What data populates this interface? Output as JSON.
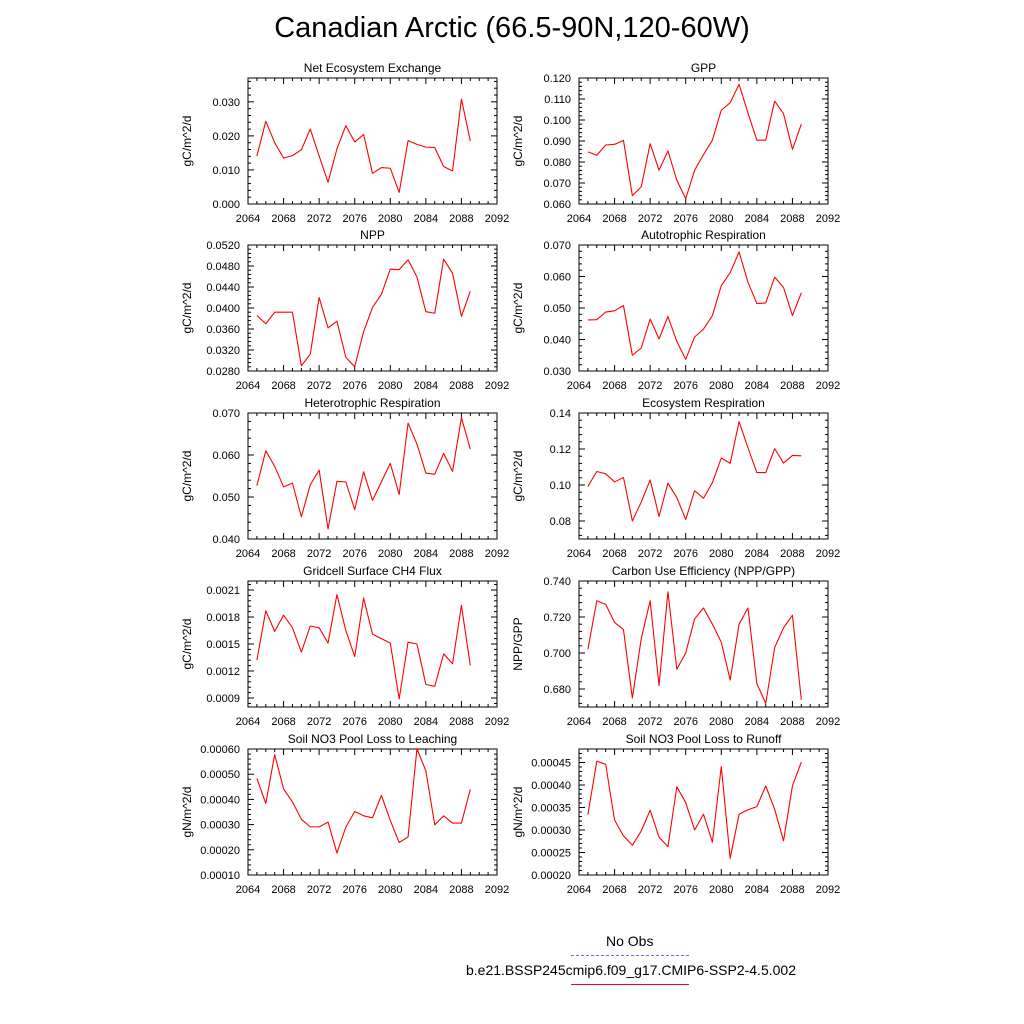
{
  "figure": {
    "title": "Canadian Arctic (66.5-90N,120-60W)"
  },
  "chart_data": [
    {
      "type": "line",
      "title": "Net Ecosystem Exchange",
      "ylabel": "gC/m^2/d",
      "xlim": [
        2064,
        2092
      ],
      "ylim": [
        0.0,
        0.037
      ],
      "xticks": [
        2064,
        2068,
        2072,
        2076,
        2080,
        2084,
        2088,
        2092
      ],
      "xtick_labels": [
        "2064",
        "2068",
        "2072",
        "2076",
        "2080",
        "2084",
        "2088",
        "2092"
      ],
      "yticks": [
        0.0,
        0.01,
        0.02,
        0.03
      ],
      "ytick_labels": [
        "0.000",
        "0.010",
        "0.020",
        "0.030"
      ],
      "x": [
        2065,
        2066,
        2067,
        2068,
        2069,
        2070,
        2071,
        2072,
        2073,
        2074,
        2075,
        2076,
        2077,
        2078,
        2079,
        2080,
        2081,
        2082,
        2083,
        2084,
        2085,
        2086,
        2087,
        2088,
        2089
      ],
      "series": [
        {
          "color": "#ff0000",
          "values": [
            0.0141,
            0.0243,
            0.018,
            0.0135,
            0.0142,
            0.0159,
            0.022,
            0.0141,
            0.0064,
            0.0162,
            0.023,
            0.0182,
            0.0204,
            0.009,
            0.0107,
            0.0105,
            0.0034,
            0.0186,
            0.0175,
            0.0167,
            0.0166,
            0.011,
            0.0097,
            0.0308,
            0.0185
          ]
        }
      ]
    },
    {
      "type": "line",
      "title": "GPP",
      "ylabel": "gC/m^2/d",
      "xlim": [
        2064,
        2092
      ],
      "ylim": [
        0.06,
        0.12
      ],
      "xticks": [
        2064,
        2068,
        2072,
        2076,
        2080,
        2084,
        2088,
        2092
      ],
      "xtick_labels": [
        "2064",
        "2068",
        "2072",
        "2076",
        "2080",
        "2084",
        "2088",
        "2092"
      ],
      "yticks": [
        0.06,
        0.07,
        0.08,
        0.09,
        0.1,
        0.11,
        0.12
      ],
      "ytick_labels": [
        "0.060",
        "0.070",
        "0.080",
        "0.090",
        "0.100",
        "0.110",
        "0.120"
      ],
      "x": [
        2065,
        2066,
        2067,
        2068,
        2069,
        2070,
        2071,
        2072,
        2073,
        2074,
        2075,
        2076,
        2077,
        2078,
        2079,
        2080,
        2081,
        2082,
        2083,
        2084,
        2085,
        2086,
        2087,
        2088,
        2089
      ],
      "series": [
        {
          "color": "#ff0000",
          "values": [
            0.0848,
            0.0832,
            0.0881,
            0.0884,
            0.0903,
            0.064,
            0.0682,
            0.0887,
            0.0761,
            0.0853,
            0.0713,
            0.0625,
            0.0761,
            0.0835,
            0.0904,
            0.1047,
            0.1082,
            0.117,
            0.1033,
            0.0904,
            0.0904,
            0.109,
            0.103,
            0.086,
            0.098
          ]
        }
      ]
    },
    {
      "type": "line",
      "title": "NPP",
      "ylabel": "gC/m^2/d",
      "xlim": [
        2064,
        2092
      ],
      "ylim": [
        0.028,
        0.052
      ],
      "xticks": [
        2064,
        2068,
        2072,
        2076,
        2080,
        2084,
        2088,
        2092
      ],
      "xtick_labels": [
        "2064",
        "2068",
        "2072",
        "2076",
        "2080",
        "2084",
        "2088",
        "2092"
      ],
      "yticks": [
        0.028,
        0.032,
        0.036,
        0.04,
        0.044,
        0.048,
        0.052
      ],
      "ytick_labels": [
        "0.0280",
        "0.0320",
        "0.0360",
        "0.0400",
        "0.0440",
        "0.0480",
        "0.0520"
      ],
      "x": [
        2065,
        2066,
        2067,
        2068,
        2069,
        2070,
        2071,
        2072,
        2073,
        2074,
        2075,
        2076,
        2077,
        2078,
        2079,
        2080,
        2081,
        2082,
        2083,
        2084,
        2085,
        2086,
        2087,
        2088,
        2089
      ],
      "series": [
        {
          "color": "#ff0000",
          "values": [
            0.0386,
            0.037,
            0.0392,
            0.0392,
            0.0392,
            0.029,
            0.0312,
            0.042,
            0.0362,
            0.0375,
            0.0306,
            0.0288,
            0.0355,
            0.0401,
            0.0426,
            0.0474,
            0.0473,
            0.0492,
            0.0459,
            0.0393,
            0.039,
            0.0493,
            0.0466,
            0.0384,
            0.0432
          ]
        }
      ]
    },
    {
      "type": "line",
      "title": "Autotrophic Respiration",
      "ylabel": "gC/m^2/d",
      "xlim": [
        2064,
        2092
      ],
      "ylim": [
        0.03,
        0.07
      ],
      "xticks": [
        2064,
        2068,
        2072,
        2076,
        2080,
        2084,
        2088,
        2092
      ],
      "xtick_labels": [
        "2064",
        "2068",
        "2072",
        "2076",
        "2080",
        "2084",
        "2088",
        "2092"
      ],
      "yticks": [
        0.03,
        0.04,
        0.05,
        0.06,
        0.07
      ],
      "ytick_labels": [
        "0.030",
        "0.040",
        "0.050",
        "0.060",
        "0.070"
      ],
      "x": [
        2065,
        2066,
        2067,
        2068,
        2069,
        2070,
        2071,
        2072,
        2073,
        2074,
        2075,
        2076,
        2077,
        2078,
        2079,
        2080,
        2081,
        2082,
        2083,
        2084,
        2085,
        2086,
        2087,
        2088,
        2089
      ],
      "series": [
        {
          "color": "#ff0000",
          "values": [
            0.0462,
            0.0463,
            0.0487,
            0.0491,
            0.0508,
            0.035,
            0.0373,
            0.0465,
            0.0402,
            0.0473,
            0.0394,
            0.0337,
            0.0408,
            0.0433,
            0.0476,
            0.0571,
            0.0612,
            0.0678,
            0.0582,
            0.0514,
            0.0516,
            0.0598,
            0.0565,
            0.0476,
            0.0548
          ]
        }
      ]
    },
    {
      "type": "line",
      "title": "Heterotrophic Respiration",
      "ylabel": "gC/m^2/d",
      "xlim": [
        2064,
        2092
      ],
      "ylim": [
        0.04,
        0.07
      ],
      "xticks": [
        2064,
        2068,
        2072,
        2076,
        2080,
        2084,
        2088,
        2092
      ],
      "xtick_labels": [
        "2064",
        "2068",
        "2072",
        "2076",
        "2080",
        "2084",
        "2088",
        "2092"
      ],
      "yticks": [
        0.04,
        0.05,
        0.06,
        0.07
      ],
      "ytick_labels": [
        "0.040",
        "0.050",
        "0.060",
        "0.070"
      ],
      "x": [
        2065,
        2066,
        2067,
        2068,
        2069,
        2070,
        2071,
        2072,
        2073,
        2074,
        2075,
        2076,
        2077,
        2078,
        2079,
        2080,
        2081,
        2082,
        2083,
        2084,
        2085,
        2086,
        2087,
        2088,
        2089
      ],
      "series": [
        {
          "color": "#ff0000",
          "values": [
            0.0527,
            0.061,
            0.0573,
            0.0524,
            0.0533,
            0.0453,
            0.0529,
            0.0564,
            0.0424,
            0.0537,
            0.0536,
            0.047,
            0.056,
            0.0492,
            0.0536,
            0.058,
            0.0506,
            0.0676,
            0.0626,
            0.0557,
            0.0554,
            0.0604,
            0.0561,
            0.0689,
            0.0614
          ]
        }
      ]
    },
    {
      "type": "line",
      "title": "Ecosystem Respiration",
      "ylabel": "gC/m^2/d",
      "xlim": [
        2064,
        2092
      ],
      "ylim": [
        0.07,
        0.14
      ],
      "xticks": [
        2064,
        2068,
        2072,
        2076,
        2080,
        2084,
        2088,
        2092
      ],
      "xtick_labels": [
        "2064",
        "2068",
        "2072",
        "2076",
        "2080",
        "2084",
        "2088",
        "2092"
      ],
      "yticks": [
        0.08,
        0.1,
        0.12,
        0.14
      ],
      "ytick_labels": [
        "0.08",
        "0.10",
        "0.12",
        "0.14"
      ],
      "x": [
        2065,
        2066,
        2067,
        2068,
        2069,
        2070,
        2071,
        2072,
        2073,
        2074,
        2075,
        2076,
        2077,
        2078,
        2079,
        2080,
        2081,
        2082,
        2083,
        2084,
        2085,
        2086,
        2087,
        2088,
        2089
      ],
      "series": [
        {
          "color": "#ff0000",
          "values": [
            0.0992,
            0.1075,
            0.1062,
            0.1017,
            0.1042,
            0.08,
            0.0905,
            0.1028,
            0.0826,
            0.101,
            0.093,
            0.0808,
            0.0968,
            0.0926,
            0.1013,
            0.115,
            0.112,
            0.1352,
            0.1207,
            0.1069,
            0.1069,
            0.1202,
            0.1122,
            0.1164,
            0.1162
          ]
        }
      ]
    },
    {
      "type": "line",
      "title": "Gridcell Surface CH4 Flux",
      "ylabel": "gC/m^2/d",
      "xlim": [
        2064,
        2092
      ],
      "ylim": [
        0.0008,
        0.0022
      ],
      "xticks": [
        2064,
        2068,
        2072,
        2076,
        2080,
        2084,
        2088,
        2092
      ],
      "xtick_labels": [
        "2064",
        "2068",
        "2072",
        "2076",
        "2080",
        "2084",
        "2088",
        "2092"
      ],
      "yticks": [
        0.0009,
        0.0012,
        0.0015,
        0.0018,
        0.0021
      ],
      "ytick_labels": [
        "0.0009",
        "0.0012",
        "0.0015",
        "0.0018",
        "0.0021"
      ],
      "x": [
        2065,
        2066,
        2067,
        2068,
        2069,
        2070,
        2071,
        2072,
        2073,
        2074,
        2075,
        2076,
        2077,
        2078,
        2079,
        2080,
        2081,
        2082,
        2083,
        2084,
        2085,
        2086,
        2087,
        2088,
        2089
      ],
      "series": [
        {
          "color": "#ff0000",
          "values": [
            0.00132,
            0.00187,
            0.00164,
            0.00182,
            0.00168,
            0.00141,
            0.0017,
            0.00168,
            0.00151,
            0.00205,
            0.00165,
            0.00136,
            0.00201,
            0.00161,
            0.00156,
            0.00151,
            0.00089,
            0.00152,
            0.0015,
            0.00105,
            0.00103,
            0.00139,
            0.00128,
            0.00193,
            0.00126
          ]
        }
      ]
    },
    {
      "type": "line",
      "title": "Carbon Use Efficiency (NPP/GPP)",
      "ylabel": "NPP/GPP",
      "xlim": [
        2064,
        2092
      ],
      "ylim": [
        0.67,
        0.74
      ],
      "xticks": [
        2064,
        2068,
        2072,
        2076,
        2080,
        2084,
        2088,
        2092
      ],
      "xtick_labels": [
        "2064",
        "2068",
        "2072",
        "2076",
        "2080",
        "2084",
        "2088",
        "2092"
      ],
      "yticks": [
        0.68,
        0.7,
        0.72,
        0.74
      ],
      "ytick_labels": [
        "0.680",
        "0.700",
        "0.720",
        "0.740"
      ],
      "x": [
        2065,
        2066,
        2067,
        2068,
        2069,
        2070,
        2071,
        2072,
        2073,
        2074,
        2075,
        2076,
        2077,
        2078,
        2079,
        2080,
        2081,
        2082,
        2083,
        2084,
        2085,
        2086,
        2087,
        2088,
        2089
      ],
      "series": [
        {
          "color": "#ff0000",
          "values": [
            0.702,
            0.729,
            0.727,
            0.717,
            0.713,
            0.675,
            0.708,
            0.729,
            0.682,
            0.734,
            0.691,
            0.7,
            0.719,
            0.725,
            0.716,
            0.706,
            0.685,
            0.716,
            0.725,
            0.683,
            0.672,
            0.703,
            0.714,
            0.721,
            0.674
          ]
        }
      ]
    },
    {
      "type": "line",
      "title": "Soil NO3 Pool Loss to Leaching",
      "ylabel": "gN/m^2/d",
      "xlim": [
        2064,
        2092
      ],
      "ylim": [
        0.0001,
        0.0006
      ],
      "xticks": [
        2064,
        2068,
        2072,
        2076,
        2080,
        2084,
        2088,
        2092
      ],
      "xtick_labels": [
        "2064",
        "2068",
        "2072",
        "2076",
        "2080",
        "2084",
        "2088",
        "2092"
      ],
      "yticks": [
        0.0001,
        0.0002,
        0.0003,
        0.0004,
        0.0005,
        0.0006
      ],
      "ytick_labels": [
        "0.00010",
        "0.00020",
        "0.00030",
        "0.00040",
        "0.00050",
        "0.00060"
      ],
      "x": [
        2065,
        2066,
        2067,
        2068,
        2069,
        2070,
        2071,
        2072,
        2073,
        2074,
        2075,
        2076,
        2077,
        2078,
        2079,
        2080,
        2081,
        2082,
        2083,
        2084,
        2085,
        2086,
        2087,
        2088,
        2089
      ],
      "series": [
        {
          "color": "#ff0000",
          "values": [
            0.000483,
            0.000384,
            0.000578,
            0.000442,
            0.00039,
            0.000321,
            0.000291,
            0.000291,
            0.00031,
            0.000187,
            0.00029,
            0.000352,
            0.000335,
            0.000327,
            0.000416,
            0.000316,
            0.000229,
            0.000251,
            0.000601,
            0.000513,
            0.000299,
            0.000335,
            0.000306,
            0.000306,
            0.00044
          ]
        }
      ]
    },
    {
      "type": "line",
      "title": "Soil NO3 Pool Loss to Runoff",
      "ylabel": "gN/m^2/d",
      "xlim": [
        2064,
        2092
      ],
      "ylim": [
        0.0002,
        0.00048
      ],
      "xticks": [
        2064,
        2068,
        2072,
        2076,
        2080,
        2084,
        2088,
        2092
      ],
      "xtick_labels": [
        "2064",
        "2068",
        "2072",
        "2076",
        "2080",
        "2084",
        "2088",
        "2092"
      ],
      "yticks": [
        0.0002,
        0.00025,
        0.0003,
        0.00035,
        0.0004,
        0.00045
      ],
      "ytick_labels": [
        "0.00020",
        "0.00025",
        "0.00030",
        "0.00035",
        "0.00040",
        "0.00045"
      ],
      "x": [
        2065,
        2066,
        2067,
        2068,
        2069,
        2070,
        2071,
        2072,
        2073,
        2074,
        2075,
        2076,
        2077,
        2078,
        2079,
        2080,
        2081,
        2082,
        2083,
        2084,
        2085,
        2086,
        2087,
        2088,
        2089
      ],
      "series": [
        {
          "color": "#ff0000",
          "values": [
            0.000334,
            0.000453,
            0.000446,
            0.000322,
            0.000287,
            0.000266,
            0.000298,
            0.000344,
            0.000284,
            0.000263,
            0.000396,
            0.000361,
            0.0003,
            0.000335,
            0.000273,
            0.000441,
            0.000237,
            0.000335,
            0.000345,
            0.000352,
            0.000398,
            0.000346,
            0.000276,
            0.000398,
            0.000451
          ]
        }
      ]
    }
  ],
  "legend": {
    "placement": "bottom-center",
    "entries": [
      {
        "label": "No Obs",
        "color": "#6a6aff",
        "style": "dashed"
      },
      {
        "label": "b.e21.BSSP245cmip6.f09_g17.CMIP6-SSP2-4.5.002",
        "color": "#ff0000",
        "style": "solid"
      }
    ]
  }
}
